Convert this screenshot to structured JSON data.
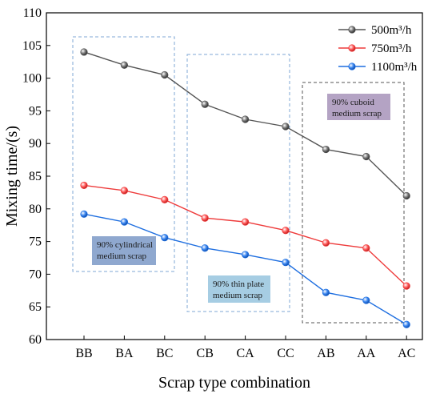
{
  "chart_data": {
    "type": "line",
    "categories": [
      "BB",
      "BA",
      "BC",
      "CB",
      "CA",
      "CC",
      "AB",
      "AA",
      "AC"
    ],
    "xlabel": "Scrap type combination",
    "ylabel": "Mixing time/(s)",
    "ylim": [
      60,
      110
    ],
    "yticks": [
      60,
      65,
      70,
      75,
      80,
      85,
      90,
      95,
      100,
      105,
      110
    ],
    "grid": false,
    "legend_position": "top-right",
    "series": [
      {
        "name": "500m³/h",
        "color": "#555555",
        "values": [
          104,
          102,
          100.5,
          96,
          93.7,
          92.6,
          89.1,
          88,
          82
        ]
      },
      {
        "name": "750m³/h",
        "color": "#ee3b3b",
        "values": [
          83.6,
          82.8,
          81.4,
          78.6,
          78,
          76.7,
          74.8,
          74,
          68.2
        ]
      },
      {
        "name": "1100m³/h",
        "color": "#1f6fe0",
        "values": [
          79.2,
          78,
          75.6,
          74,
          73,
          71.8,
          67.2,
          66,
          62.3
        ]
      }
    ],
    "annotations": [
      {
        "text_lines": [
          "90% cylindrical",
          "medium scrap"
        ],
        "fill": "#8fa8cf",
        "group": [
          "BB",
          "BA",
          "BC"
        ]
      },
      {
        "text_lines": [
          "90% thin plate",
          "medium scrap"
        ],
        "fill": "#a6cde3",
        "group": [
          "CB",
          "CA",
          "CC"
        ]
      },
      {
        "text_lines": [
          "90% cuboid",
          "medium scrap"
        ],
        "fill": "#b4a3c4",
        "group": [
          "AB",
          "AA",
          "AC"
        ]
      }
    ]
  }
}
